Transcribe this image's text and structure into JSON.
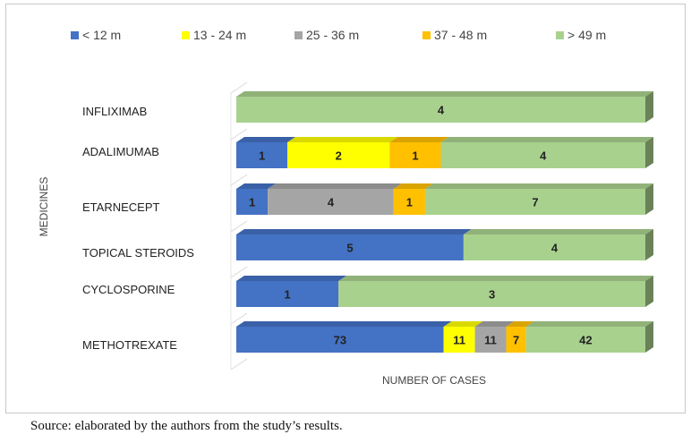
{
  "chart_data": {
    "type": "bar",
    "orientation": "horizontal",
    "stacked": true,
    "three_d": true,
    "categories": [
      "INFLIXIMAB",
      "ADALIMUMAB",
      "ETARNECEPT",
      "TOPICAL STEROIDS",
      "CYCLOSPORINE",
      "METHOTREXATE"
    ],
    "series": [
      {
        "name": "< 12 m",
        "color": "#4472C4",
        "values": [
          0,
          1,
          1,
          5,
          1,
          73
        ]
      },
      {
        "name": "13 - 24 m",
        "color": "#FFFF00",
        "values": [
          0,
          2,
          0,
          0,
          0,
          11
        ]
      },
      {
        "name": "25 - 36 m",
        "color": "#A5A5A5",
        "values": [
          0,
          0,
          4,
          0,
          0,
          11
        ]
      },
      {
        "name": "37 - 48 m",
        "color": "#FFC000",
        "values": [
          0,
          1,
          1,
          0,
          0,
          7
        ]
      },
      {
        "name": "> 49 m",
        "color": "#A9D18E",
        "values": [
          4,
          4,
          7,
          4,
          3,
          42
        ]
      }
    ],
    "xlabel": "NUMBER OF CASES",
    "ylabel": "MEDICINES",
    "normalized_100_percent": true,
    "legend_position": "top",
    "data_labels": true,
    "gridlines": false
  },
  "footer": {
    "source": "Source: elaborated by the authors from the study’s results."
  }
}
